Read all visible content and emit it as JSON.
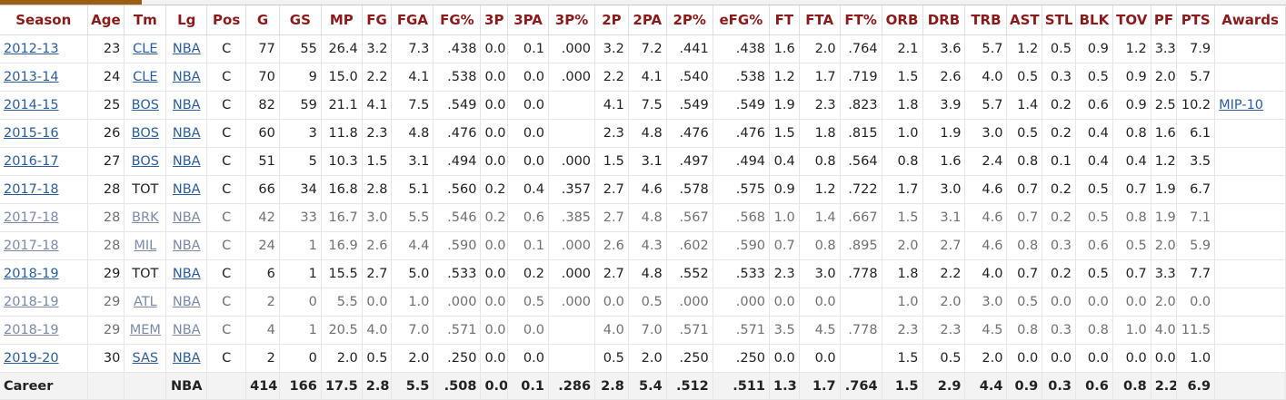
{
  "columns": [
    "Season",
    "Age",
    "Tm",
    "Lg",
    "Pos",
    "G",
    "GS",
    "MP",
    "FG",
    "FGA",
    "FG%",
    "3P",
    "3PA",
    "3P%",
    "2P",
    "2PA",
    "2P%",
    "eFG%",
    "FT",
    "FTA",
    "FT%",
    "ORB",
    "DRB",
    "TRB",
    "AST",
    "STL",
    "BLK",
    "TOV",
    "PF",
    "PTS",
    "Awards"
  ],
  "rows": [
    {
      "season": "2012-13",
      "age": "23",
      "tm": "CLE",
      "tm_link": true,
      "lg": "NBA",
      "pos": "C",
      "partial": false,
      "stats": [
        "77",
        "55",
        "26.4",
        "3.2",
        "7.3",
        ".438",
        "0.0",
        "0.1",
        ".000",
        "3.2",
        "7.2",
        ".441",
        ".438",
        "1.6",
        "2.0",
        ".764",
        "2.1",
        "3.6",
        "5.7",
        "1.2",
        "0.5",
        "0.9",
        "1.2",
        "3.3",
        "7.9"
      ],
      "awards": ""
    },
    {
      "season": "2013-14",
      "age": "24",
      "tm": "CLE",
      "tm_link": true,
      "lg": "NBA",
      "pos": "C",
      "partial": false,
      "stats": [
        "70",
        "9",
        "15.0",
        "2.2",
        "4.1",
        ".538",
        "0.0",
        "0.0",
        ".000",
        "2.2",
        "4.1",
        ".540",
        ".538",
        "1.2",
        "1.7",
        ".719",
        "1.5",
        "2.6",
        "4.0",
        "0.5",
        "0.3",
        "0.5",
        "0.9",
        "2.0",
        "5.7"
      ],
      "awards": ""
    },
    {
      "season": "2014-15",
      "age": "25",
      "tm": "BOS",
      "tm_link": true,
      "lg": "NBA",
      "pos": "C",
      "partial": false,
      "stats": [
        "82",
        "59",
        "21.1",
        "4.1",
        "7.5",
        ".549",
        "0.0",
        "0.0",
        "",
        "4.1",
        "7.5",
        ".549",
        ".549",
        "1.9",
        "2.3",
        ".823",
        "1.8",
        "3.9",
        "5.7",
        "1.4",
        "0.2",
        "0.6",
        "0.9",
        "2.5",
        "10.2"
      ],
      "awards": "MIP-10"
    },
    {
      "season": "2015-16",
      "age": "26",
      "tm": "BOS",
      "tm_link": true,
      "lg": "NBA",
      "pos": "C",
      "partial": false,
      "stats": [
        "60",
        "3",
        "11.8",
        "2.3",
        "4.8",
        ".476",
        "0.0",
        "0.0",
        "",
        "2.3",
        "4.8",
        ".476",
        ".476",
        "1.5",
        "1.8",
        ".815",
        "1.0",
        "1.9",
        "3.0",
        "0.5",
        "0.2",
        "0.4",
        "0.8",
        "1.6",
        "6.1"
      ],
      "awards": ""
    },
    {
      "season": "2016-17",
      "age": "27",
      "tm": "BOS",
      "tm_link": true,
      "lg": "NBA",
      "pos": "C",
      "partial": false,
      "stats": [
        "51",
        "5",
        "10.3",
        "1.5",
        "3.1",
        ".494",
        "0.0",
        "0.0",
        ".000",
        "1.5",
        "3.1",
        ".497",
        ".494",
        "0.4",
        "0.8",
        ".564",
        "0.8",
        "1.6",
        "2.4",
        "0.8",
        "0.1",
        "0.4",
        "0.4",
        "1.2",
        "3.5"
      ],
      "awards": ""
    },
    {
      "season": "2017-18",
      "age": "28",
      "tm": "TOT",
      "tm_link": false,
      "lg": "NBA",
      "pos": "C",
      "partial": false,
      "stats": [
        "66",
        "34",
        "16.8",
        "2.8",
        "5.1",
        ".560",
        "0.2",
        "0.4",
        ".357",
        "2.7",
        "4.6",
        ".578",
        ".575",
        "0.9",
        "1.2",
        ".722",
        "1.7",
        "3.0",
        "4.6",
        "0.7",
        "0.2",
        "0.5",
        "0.7",
        "1.9",
        "6.7"
      ],
      "awards": ""
    },
    {
      "season": "2017-18",
      "age": "28",
      "tm": "BRK",
      "tm_link": true,
      "lg": "NBA",
      "pos": "C",
      "partial": true,
      "stats": [
        "42",
        "33",
        "16.7",
        "3.0",
        "5.5",
        ".546",
        "0.2",
        "0.6",
        ".385",
        "2.7",
        "4.8",
        ".567",
        ".568",
        "1.0",
        "1.4",
        ".667",
        "1.5",
        "3.1",
        "4.6",
        "0.7",
        "0.2",
        "0.5",
        "0.8",
        "1.9",
        "7.1"
      ],
      "awards": ""
    },
    {
      "season": "2017-18",
      "age": "28",
      "tm": "MIL",
      "tm_link": true,
      "lg": "NBA",
      "pos": "C",
      "partial": true,
      "stats": [
        "24",
        "1",
        "16.9",
        "2.6",
        "4.4",
        ".590",
        "0.0",
        "0.1",
        ".000",
        "2.6",
        "4.3",
        ".602",
        ".590",
        "0.7",
        "0.8",
        ".895",
        "2.0",
        "2.7",
        "4.6",
        "0.8",
        "0.3",
        "0.6",
        "0.5",
        "2.0",
        "5.9"
      ],
      "awards": ""
    },
    {
      "season": "2018-19",
      "age": "29",
      "tm": "TOT",
      "tm_link": false,
      "lg": "NBA",
      "pos": "C",
      "partial": false,
      "stats": [
        "6",
        "1",
        "15.5",
        "2.7",
        "5.0",
        ".533",
        "0.0",
        "0.2",
        ".000",
        "2.7",
        "4.8",
        ".552",
        ".533",
        "2.3",
        "3.0",
        ".778",
        "1.8",
        "2.2",
        "4.0",
        "0.7",
        "0.2",
        "0.5",
        "0.7",
        "3.3",
        "7.7"
      ],
      "awards": ""
    },
    {
      "season": "2018-19",
      "age": "29",
      "tm": "ATL",
      "tm_link": true,
      "lg": "NBA",
      "pos": "C",
      "partial": true,
      "stats": [
        "2",
        "0",
        "5.5",
        "0.0",
        "1.0",
        ".000",
        "0.0",
        "0.5",
        ".000",
        "0.0",
        "0.5",
        ".000",
        ".000",
        "0.0",
        "0.0",
        "",
        "1.0",
        "2.0",
        "3.0",
        "0.5",
        "0.0",
        "0.0",
        "0.0",
        "2.0",
        "0.0"
      ],
      "awards": ""
    },
    {
      "season": "2018-19",
      "age": "29",
      "tm": "MEM",
      "tm_link": true,
      "lg": "NBA",
      "pos": "C",
      "partial": true,
      "stats": [
        "4",
        "1",
        "20.5",
        "4.0",
        "7.0",
        ".571",
        "0.0",
        "0.0",
        "",
        "4.0",
        "7.0",
        ".571",
        ".571",
        "3.5",
        "4.5",
        ".778",
        "2.3",
        "2.3",
        "4.5",
        "0.8",
        "0.3",
        "0.8",
        "1.0",
        "4.0",
        "11.5"
      ],
      "awards": ""
    },
    {
      "season": "2019-20",
      "age": "30",
      "tm": "SAS",
      "tm_link": true,
      "lg": "NBA",
      "pos": "C",
      "partial": false,
      "stats": [
        "2",
        "0",
        "2.0",
        "0.5",
        "2.0",
        ".250",
        "0.0",
        "0.0",
        "",
        "0.5",
        "2.0",
        ".250",
        ".250",
        "0.0",
        "0.0",
        "",
        "1.5",
        "0.5",
        "2.0",
        "0.0",
        "0.0",
        "0.0",
        "0.0",
        "0.0",
        "1.0"
      ],
      "awards": ""
    }
  ],
  "career": {
    "label": "Career",
    "lg": "NBA",
    "stats": [
      "414",
      "166",
      "17.5",
      "2.8",
      "5.5",
      ".508",
      "0.0",
      "0.1",
      ".286",
      "2.8",
      "5.4",
      ".512",
      ".511",
      "1.3",
      "1.7",
      ".764",
      "1.5",
      "2.9",
      "4.4",
      "0.9",
      "0.3",
      "0.6",
      "0.8",
      "2.2",
      "6.9"
    ]
  }
}
